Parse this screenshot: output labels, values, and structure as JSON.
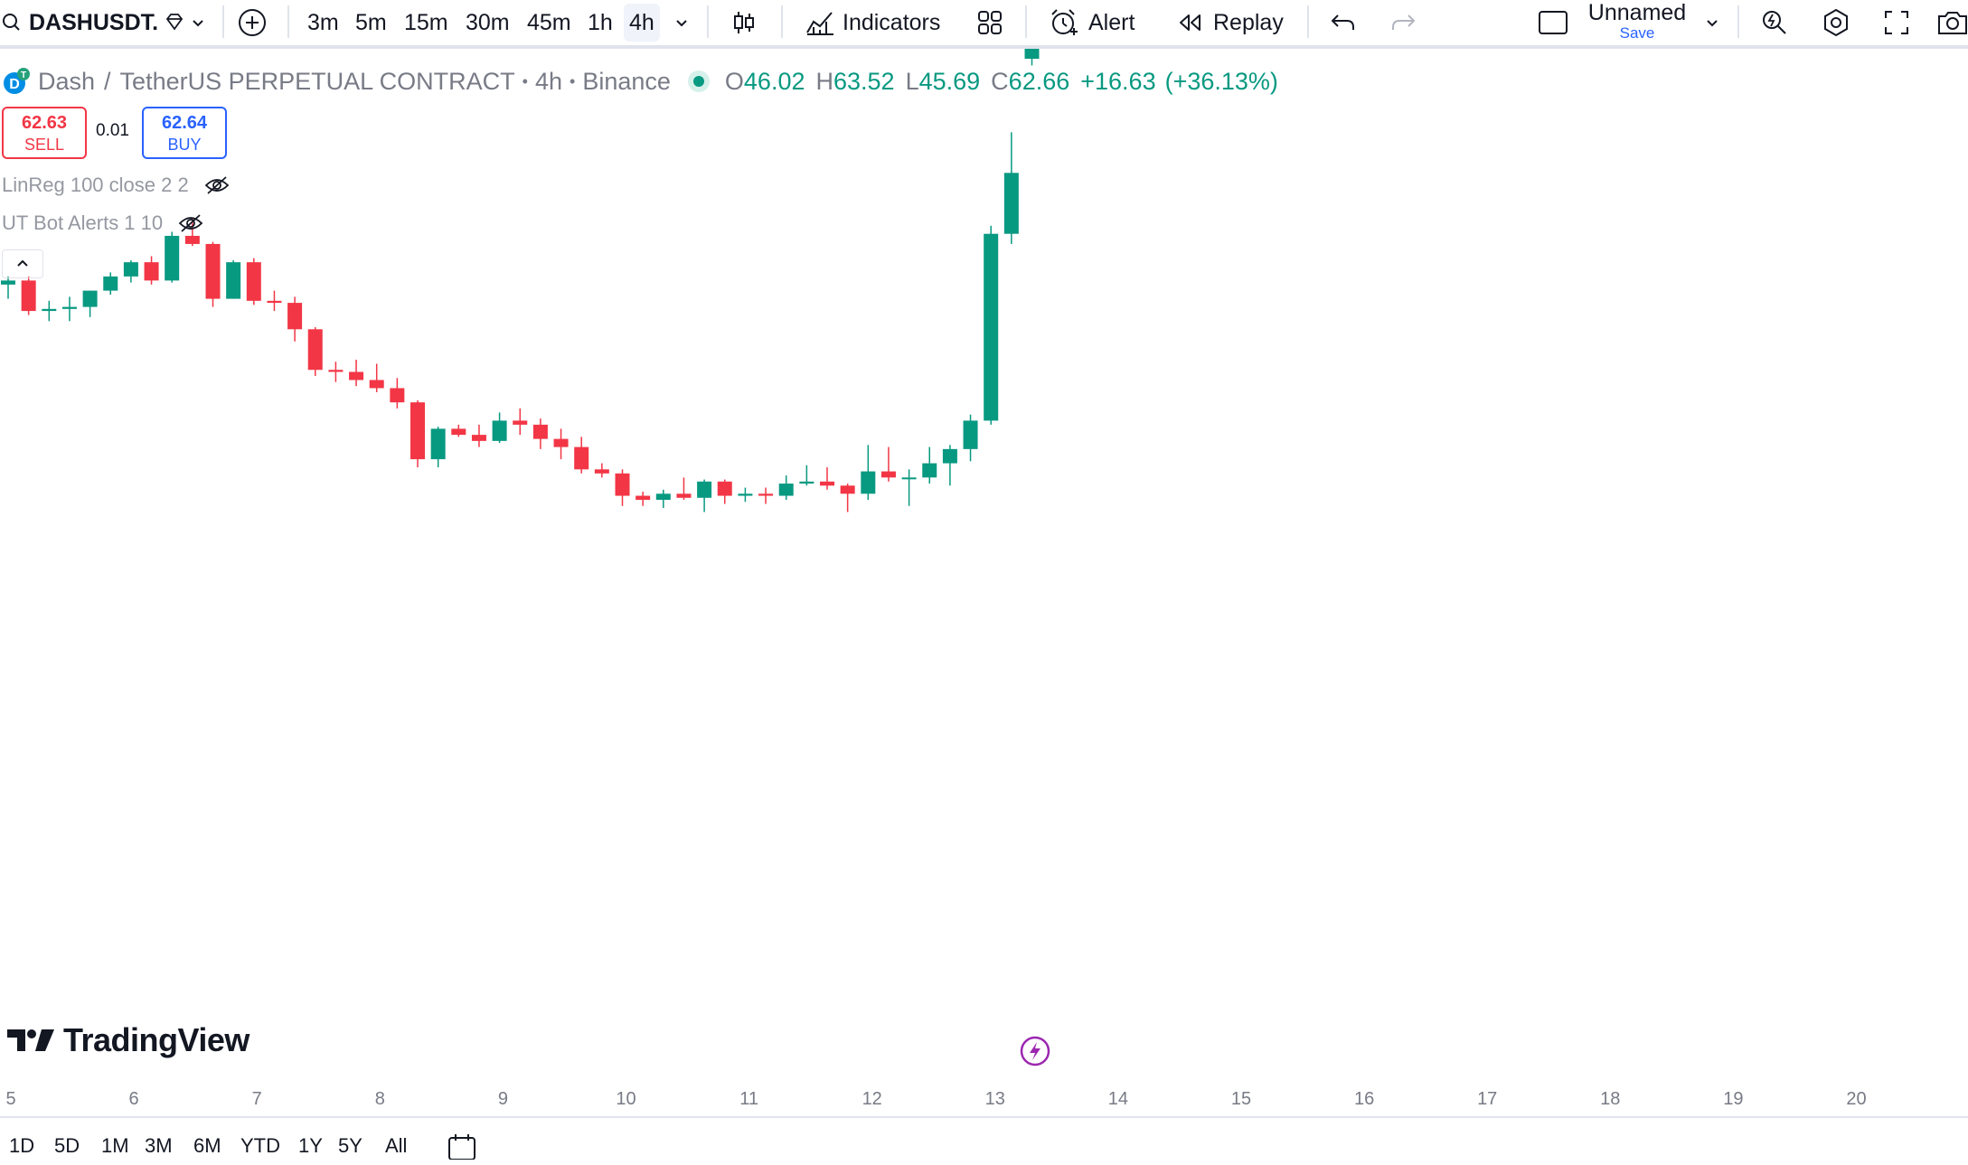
{
  "toolbar": {
    "symbol": "DASHUSDT.",
    "timeframes": [
      "3m",
      "5m",
      "15m",
      "30m",
      "45m",
      "1h",
      "4h"
    ],
    "active_timeframe": "4h",
    "indicators_label": "Indicators",
    "alert_label": "Alert",
    "replay_label": "Replay",
    "layout_name": "Unnamed",
    "save_label": "Save"
  },
  "legend": {
    "symbol_name": "Dash",
    "contract": "TetherUS PERPETUAL CONTRACT",
    "interval": "4h",
    "exchange": "Binance",
    "o_label": "O",
    "o": "46.02",
    "h_label": "H",
    "h": "63.52",
    "l_label": "L",
    "l": "45.69",
    "c_label": "C",
    "c": "62.66",
    "change": "+16.63",
    "change_pct": "(+36.13%)"
  },
  "trade": {
    "sell_price": "62.63",
    "sell_label": "SELL",
    "spread": "0.01",
    "buy_price": "62.64",
    "buy_label": "BUY"
  },
  "indicators": [
    {
      "label": "LinReg 100 close 2 2"
    },
    {
      "label": "UT Bot Alerts 1 10"
    }
  ],
  "watermark": "TradingView",
  "colors": {
    "up": "#089981",
    "down": "#f23645",
    "accent": "#2962ff",
    "event": "#9c27b0"
  },
  "bottom": {
    "ranges": [
      "1D",
      "5D",
      "1M",
      "3M",
      "6M",
      "YTD",
      "1Y",
      "5Y",
      "All"
    ]
  },
  "chart_data": {
    "type": "candlestick",
    "series_label": "DASHUSDT.P, 4h",
    "x_tick_labels": [
      "5",
      "6",
      "7",
      "8",
      "9",
      "10",
      "11",
      "12",
      "13",
      "14",
      "15",
      "16",
      "17",
      "18",
      "19",
      "20"
    ],
    "last_price": 62.66,
    "ohlc": [
      {
        "o": 34.9,
        "h": 35.3,
        "l": 34.2,
        "c": 35.1
      },
      {
        "o": 35.1,
        "h": 35.3,
        "l": 33.4,
        "c": 33.6
      },
      {
        "o": 33.6,
        "h": 34.1,
        "l": 33.1,
        "c": 33.7
      },
      {
        "o": 33.7,
        "h": 34.3,
        "l": 33.1,
        "c": 33.8
      },
      {
        "o": 33.8,
        "h": 34.6,
        "l": 33.3,
        "c": 34.6
      },
      {
        "o": 34.6,
        "h": 35.5,
        "l": 34.4,
        "c": 35.3
      },
      {
        "o": 35.3,
        "h": 36.1,
        "l": 35.0,
        "c": 36.0
      },
      {
        "o": 36.0,
        "h": 36.3,
        "l": 34.9,
        "c": 35.1
      },
      {
        "o": 35.1,
        "h": 37.5,
        "l": 35.0,
        "c": 37.3
      },
      {
        "o": 37.3,
        "h": 38.2,
        "l": 36.8,
        "c": 36.9
      },
      {
        "o": 36.9,
        "h": 37.0,
        "l": 33.8,
        "c": 34.2
      },
      {
        "o": 34.2,
        "h": 36.1,
        "l": 34.2,
        "c": 36.0
      },
      {
        "o": 36.0,
        "h": 36.2,
        "l": 33.9,
        "c": 34.1
      },
      {
        "o": 34.1,
        "h": 34.6,
        "l": 33.6,
        "c": 34.0
      },
      {
        "o": 34.0,
        "h": 34.3,
        "l": 32.1,
        "c": 32.7
      },
      {
        "o": 32.7,
        "h": 32.8,
        "l": 30.4,
        "c": 30.7
      },
      {
        "o": 30.7,
        "h": 31.1,
        "l": 30.1,
        "c": 30.6
      },
      {
        "o": 30.6,
        "h": 31.2,
        "l": 29.9,
        "c": 30.2
      },
      {
        "o": 30.2,
        "h": 31.0,
        "l": 29.6,
        "c": 29.8
      },
      {
        "o": 29.8,
        "h": 30.3,
        "l": 28.8,
        "c": 29.1
      },
      {
        "o": 29.1,
        "h": 29.2,
        "l": 25.9,
        "c": 26.3
      },
      {
        "o": 26.3,
        "h": 27.9,
        "l": 25.9,
        "c": 27.8
      },
      {
        "o": 27.8,
        "h": 28.0,
        "l": 27.4,
        "c": 27.5
      },
      {
        "o": 27.5,
        "h": 28.0,
        "l": 26.9,
        "c": 27.2
      },
      {
        "o": 27.2,
        "h": 28.6,
        "l": 27.1,
        "c": 28.2
      },
      {
        "o": 28.2,
        "h": 28.8,
        "l": 27.5,
        "c": 28.0
      },
      {
        "o": 28.0,
        "h": 28.3,
        "l": 26.8,
        "c": 27.3
      },
      {
        "o": 27.3,
        "h": 27.8,
        "l": 26.3,
        "c": 26.9
      },
      {
        "o": 26.9,
        "h": 27.4,
        "l": 25.6,
        "c": 25.8
      },
      {
        "o": 25.8,
        "h": 26.1,
        "l": 25.4,
        "c": 25.6
      },
      {
        "o": 25.6,
        "h": 25.8,
        "l": 24.0,
        "c": 24.5
      },
      {
        "o": 24.5,
        "h": 24.7,
        "l": 24.0,
        "c": 24.3
      },
      {
        "o": 24.3,
        "h": 24.8,
        "l": 23.9,
        "c": 24.6
      },
      {
        "o": 24.6,
        "h": 25.4,
        "l": 24.3,
        "c": 24.4
      },
      {
        "o": 24.4,
        "h": 25.3,
        "l": 23.7,
        "c": 25.2
      },
      {
        "o": 25.2,
        "h": 25.3,
        "l": 24.1,
        "c": 24.5
      },
      {
        "o": 24.5,
        "h": 24.9,
        "l": 24.2,
        "c": 24.6
      },
      {
        "o": 24.6,
        "h": 24.9,
        "l": 24.1,
        "c": 24.5
      },
      {
        "o": 24.5,
        "h": 25.5,
        "l": 24.3,
        "c": 25.1
      },
      {
        "o": 25.1,
        "h": 26.0,
        "l": 25.0,
        "c": 25.2
      },
      {
        "o": 25.2,
        "h": 25.9,
        "l": 24.8,
        "c": 25.0
      },
      {
        "o": 25.0,
        "h": 25.1,
        "l": 23.7,
        "c": 24.6
      },
      {
        "o": 24.6,
        "h": 27.0,
        "l": 24.3,
        "c": 25.7
      },
      {
        "o": 25.7,
        "h": 26.9,
        "l": 25.2,
        "c": 25.4
      },
      {
        "o": 25.4,
        "h": 25.8,
        "l": 24.0,
        "c": 25.4
      },
      {
        "o": 25.4,
        "h": 26.9,
        "l": 25.1,
        "c": 26.1
      },
      {
        "o": 26.1,
        "h": 27.0,
        "l": 25.0,
        "c": 26.8
      },
      {
        "o": 26.8,
        "h": 28.5,
        "l": 26.2,
        "c": 28.2
      },
      {
        "o": 28.2,
        "h": 37.8,
        "l": 28.0,
        "c": 37.4
      },
      {
        "o": 37.4,
        "h": 42.4,
        "l": 36.9,
        "c": 40.4
      },
      {
        "o": 46.02,
        "h": 63.52,
        "l": 45.69,
        "c": 62.66
      }
    ]
  }
}
